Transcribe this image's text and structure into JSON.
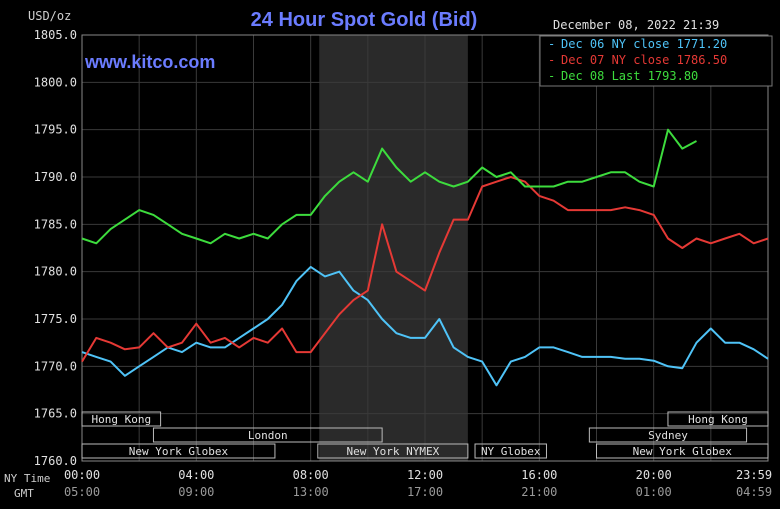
{
  "title": "24 Hour Spot Gold (Bid)",
  "watermark": "www.kitco.com",
  "unit_label": "USD/oz",
  "timestamp": "December 08, 2022 21:39",
  "legend": [
    {
      "label": "Dec 06 NY close 1771.20",
      "color": "#4fc3f7"
    },
    {
      "label": "Dec 07 NY close 1786.50",
      "color": "#e53935"
    },
    {
      "label": "Dec 08 Last 1793.80",
      "color": "#3ddc3d"
    }
  ],
  "axis_row_labels": {
    "ny": "NY Time",
    "gmt": "GMT"
  },
  "sessions": [
    {
      "name": "Hong Kong",
      "start": -0.5,
      "end": 2.75
    },
    {
      "name": "London",
      "start": 2.5,
      "end": 10.5
    },
    {
      "name": "New York Globex",
      "start": 0,
      "end": 6.75
    },
    {
      "name": "New York NYMEX",
      "start": 8.25,
      "end": 13.5
    },
    {
      "name": "NY Globex",
      "start": 13.75,
      "end": 16.25
    },
    {
      "name": "Hong Kong",
      "start": 20.5,
      "end": 24
    },
    {
      "name": "Sydney",
      "start": 17.75,
      "end": 23.25
    },
    {
      "name": "New York Globex",
      "start": 18.0,
      "end": 24.0
    }
  ],
  "chart_data": {
    "type": "line",
    "title": "24 Hour Spot Gold (Bid)",
    "xlabel": "",
    "ylabel": "USD/oz",
    "xlim": [
      0,
      24
    ],
    "ylim": [
      1760,
      1805
    ],
    "x_ticks": [
      "00:00",
      "04:00",
      "08:00",
      "12:00",
      "16:00",
      "20:00",
      "23:59"
    ],
    "x_ticks_gmt": [
      "05:00",
      "09:00",
      "13:00",
      "17:00",
      "21:00",
      "01:00",
      "04:59"
    ],
    "y_ticks": [
      "1760.0",
      "1765.0",
      "1770.0",
      "1775.0",
      "1780.0",
      "1785.0",
      "1790.0",
      "1795.0",
      "1800.0",
      "1805.0"
    ],
    "shaded_x": [
      8.3,
      13.5
    ],
    "grid": true,
    "series": [
      {
        "name": "Dec 06 NY close 1771.20",
        "color": "#4fc3f7",
        "x": [
          0,
          0.5,
          1,
          1.5,
          2,
          2.5,
          3,
          3.5,
          4,
          4.5,
          5,
          5.5,
          6,
          6.5,
          7,
          7.5,
          8,
          8.5,
          9,
          9.5,
          10,
          10.5,
          11,
          11.5,
          12,
          12.5,
          13,
          13.5,
          14,
          14.5,
          15,
          15.5,
          16,
          16.5,
          17,
          17.5,
          18,
          18.5,
          19,
          19.5,
          20,
          20.5,
          21,
          21.5,
          22,
          22.5,
          23,
          23.5,
          24
        ],
        "y": [
          1771.5,
          1771,
          1770.5,
          1769,
          1770,
          1771,
          1772,
          1771.5,
          1772.5,
          1772,
          1772,
          1773,
          1774,
          1775,
          1776.5,
          1779,
          1780.5,
          1779.5,
          1780,
          1778,
          1777,
          1775,
          1773.5,
          1773,
          1773,
          1775,
          1772,
          1771,
          1770.5,
          1768,
          1770.5,
          1771,
          1772,
          1772,
          1771.5,
          1771,
          1771,
          1771,
          1770.8,
          1770.8,
          1770.6,
          1770,
          1769.8,
          1772.5,
          1774,
          1772.5,
          1772.5,
          1771.8,
          1770.8
        ]
      },
      {
        "name": "Dec 07 NY close 1786.50",
        "color": "#e53935",
        "x": [
          0,
          0.5,
          1,
          1.5,
          2,
          2.5,
          3,
          3.5,
          4,
          4.5,
          5,
          5.5,
          6,
          6.5,
          7,
          7.5,
          8,
          8.5,
          9,
          9.5,
          10,
          10.5,
          11,
          11.5,
          12,
          12.5,
          13,
          13.5,
          14,
          14.5,
          15,
          15.5,
          16,
          16.5,
          17,
          17.5,
          18,
          18.5,
          19,
          19.5,
          20,
          20.5,
          21,
          21.5,
          22,
          22.5,
          23,
          23.5,
          24
        ],
        "y": [
          1770.5,
          1773,
          1772.5,
          1771.8,
          1772,
          1773.5,
          1772,
          1772.5,
          1774.5,
          1772.5,
          1773,
          1772,
          1773,
          1772.5,
          1774,
          1771.5,
          1771.5,
          1773.5,
          1775.5,
          1777,
          1778,
          1785,
          1780,
          1779,
          1778,
          1782,
          1785.5,
          1785.5,
          1789,
          1789.5,
          1790,
          1789.5,
          1788,
          1787.5,
          1786.5,
          1786.5,
          1786.5,
          1786.5,
          1786.8,
          1786.5,
          1786,
          1783.5,
          1782.5,
          1783.5,
          1783,
          1783.5,
          1784,
          1783,
          1783.5
        ]
      },
      {
        "name": "Dec 08 Last 1793.80",
        "color": "#3ddc3d",
        "x": [
          0,
          0.5,
          1,
          1.5,
          2,
          2.5,
          3,
          3.5,
          4,
          4.5,
          5,
          5.5,
          6,
          6.5,
          7,
          7.5,
          8,
          8.5,
          9,
          9.5,
          10,
          10.5,
          11,
          11.5,
          12,
          12.5,
          13,
          13.5,
          14,
          14.5,
          15,
          15.5,
          16,
          16.5,
          17,
          17.5,
          18,
          18.5,
          19,
          19.5,
          20,
          20.5,
          21,
          21.5,
          22,
          22.5
        ],
        "y": [
          1783.5,
          1783,
          1784.5,
          1785.5,
          1786.5,
          1786,
          1785,
          1784,
          1783.5,
          1783,
          1784,
          1783.5,
          1784,
          1783.5,
          1785,
          1786,
          1786,
          1788,
          1789.5,
          1790.5,
          1789.5,
          1793,
          1791,
          1789.5,
          1790.5,
          1789.5,
          1789,
          1789.5,
          1791,
          1790,
          1790.5,
          1789,
          1789,
          1789,
          1789.5,
          1789.5,
          1790,
          1790.5,
          1790.5,
          1789.5,
          1789,
          1795,
          1793,
          1793.8,
          null,
          null
        ]
      }
    ]
  }
}
